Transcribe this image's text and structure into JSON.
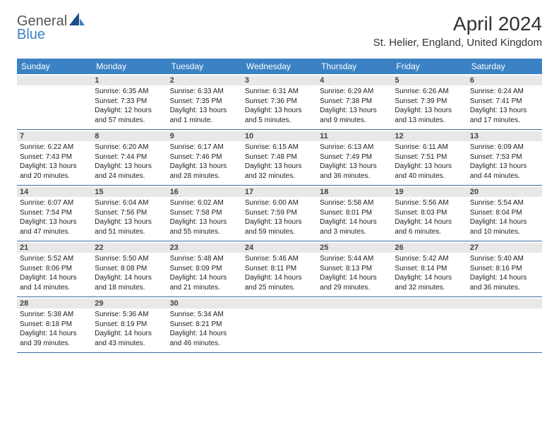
{
  "brand": {
    "part1": "General",
    "part2": "Blue"
  },
  "title": "April 2024",
  "location": "St. Helier, England, United Kingdom",
  "colors": {
    "accent": "#3b82c4",
    "headerbg": "#3b82c4",
    "rowline": "#3b6ea0",
    "daybg": "#e8e8e8"
  },
  "days_of_week": [
    "Sunday",
    "Monday",
    "Tuesday",
    "Wednesday",
    "Thursday",
    "Friday",
    "Saturday"
  ],
  "weeks": [
    [
      null,
      {
        "n": "1",
        "sr": "6:35 AM",
        "ss": "7:33 PM",
        "dl": "12 hours and 57 minutes."
      },
      {
        "n": "2",
        "sr": "6:33 AM",
        "ss": "7:35 PM",
        "dl": "13 hours and 1 minute."
      },
      {
        "n": "3",
        "sr": "6:31 AM",
        "ss": "7:36 PM",
        "dl": "13 hours and 5 minutes."
      },
      {
        "n": "4",
        "sr": "6:29 AM",
        "ss": "7:38 PM",
        "dl": "13 hours and 9 minutes."
      },
      {
        "n": "5",
        "sr": "6:26 AM",
        "ss": "7:39 PM",
        "dl": "13 hours and 13 minutes."
      },
      {
        "n": "6",
        "sr": "6:24 AM",
        "ss": "7:41 PM",
        "dl": "13 hours and 17 minutes."
      }
    ],
    [
      {
        "n": "7",
        "sr": "6:22 AM",
        "ss": "7:43 PM",
        "dl": "13 hours and 20 minutes."
      },
      {
        "n": "8",
        "sr": "6:20 AM",
        "ss": "7:44 PM",
        "dl": "13 hours and 24 minutes."
      },
      {
        "n": "9",
        "sr": "6:17 AM",
        "ss": "7:46 PM",
        "dl": "13 hours and 28 minutes."
      },
      {
        "n": "10",
        "sr": "6:15 AM",
        "ss": "7:48 PM",
        "dl": "13 hours and 32 minutes."
      },
      {
        "n": "11",
        "sr": "6:13 AM",
        "ss": "7:49 PM",
        "dl": "13 hours and 36 minutes."
      },
      {
        "n": "12",
        "sr": "6:11 AM",
        "ss": "7:51 PM",
        "dl": "13 hours and 40 minutes."
      },
      {
        "n": "13",
        "sr": "6:09 AM",
        "ss": "7:53 PM",
        "dl": "13 hours and 44 minutes."
      }
    ],
    [
      {
        "n": "14",
        "sr": "6:07 AM",
        "ss": "7:54 PM",
        "dl": "13 hours and 47 minutes."
      },
      {
        "n": "15",
        "sr": "6:04 AM",
        "ss": "7:56 PM",
        "dl": "13 hours and 51 minutes."
      },
      {
        "n": "16",
        "sr": "6:02 AM",
        "ss": "7:58 PM",
        "dl": "13 hours and 55 minutes."
      },
      {
        "n": "17",
        "sr": "6:00 AM",
        "ss": "7:59 PM",
        "dl": "13 hours and 59 minutes."
      },
      {
        "n": "18",
        "sr": "5:58 AM",
        "ss": "8:01 PM",
        "dl": "14 hours and 3 minutes."
      },
      {
        "n": "19",
        "sr": "5:56 AM",
        "ss": "8:03 PM",
        "dl": "14 hours and 6 minutes."
      },
      {
        "n": "20",
        "sr": "5:54 AM",
        "ss": "8:04 PM",
        "dl": "14 hours and 10 minutes."
      }
    ],
    [
      {
        "n": "21",
        "sr": "5:52 AM",
        "ss": "8:06 PM",
        "dl": "14 hours and 14 minutes."
      },
      {
        "n": "22",
        "sr": "5:50 AM",
        "ss": "8:08 PM",
        "dl": "14 hours and 18 minutes."
      },
      {
        "n": "23",
        "sr": "5:48 AM",
        "ss": "8:09 PM",
        "dl": "14 hours and 21 minutes."
      },
      {
        "n": "24",
        "sr": "5:46 AM",
        "ss": "8:11 PM",
        "dl": "14 hours and 25 minutes."
      },
      {
        "n": "25",
        "sr": "5:44 AM",
        "ss": "8:13 PM",
        "dl": "14 hours and 29 minutes."
      },
      {
        "n": "26",
        "sr": "5:42 AM",
        "ss": "8:14 PM",
        "dl": "14 hours and 32 minutes."
      },
      {
        "n": "27",
        "sr": "5:40 AM",
        "ss": "8:16 PM",
        "dl": "14 hours and 36 minutes."
      }
    ],
    [
      {
        "n": "28",
        "sr": "5:38 AM",
        "ss": "8:18 PM",
        "dl": "14 hours and 39 minutes."
      },
      {
        "n": "29",
        "sr": "5:36 AM",
        "ss": "8:19 PM",
        "dl": "14 hours and 43 minutes."
      },
      {
        "n": "30",
        "sr": "5:34 AM",
        "ss": "8:21 PM",
        "dl": "14 hours and 46 minutes."
      },
      null,
      null,
      null,
      null
    ]
  ],
  "labels": {
    "sunrise": "Sunrise:",
    "sunset": "Sunset:",
    "daylight": "Daylight:"
  }
}
